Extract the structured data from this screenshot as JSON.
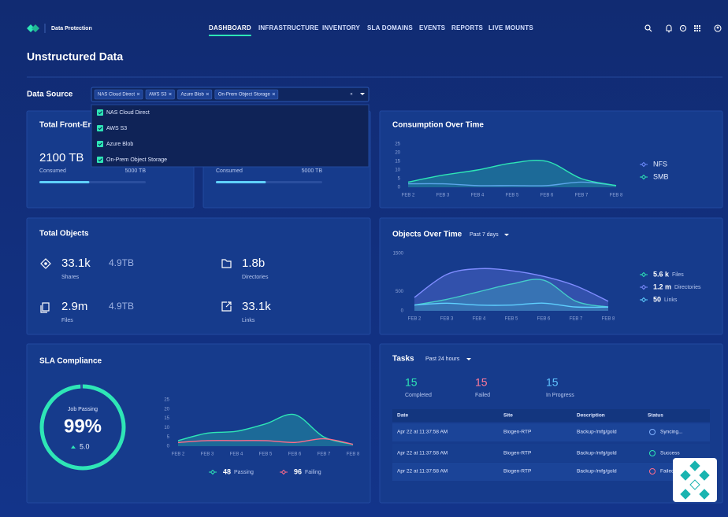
{
  "header": {
    "brand": "Data Protection",
    "nav": [
      "DASHBOARD",
      "INFRASTRUCTURE",
      "INVENTORY",
      "SLA DOMAINS",
      "EVENTS",
      "REPORTS",
      "LIVE MOUNTS"
    ]
  },
  "page_title": "Unstructured Data",
  "data_source": {
    "label": "Data Source",
    "selected": [
      "NAS Cloud Direct",
      "AWS S3",
      "Azure Blob",
      "On-Prem Object Storage"
    ],
    "options": [
      "NAS Cloud Direct",
      "AWS S3",
      "Azure Blob",
      "On-Prem Object Storage"
    ]
  },
  "front_end_storage": {
    "title": "Total Front-End",
    "value": "2100 TB",
    "consumed_label": "Consumed",
    "capacity": "5000 TB",
    "progress_percent": 47
  },
  "second_storage": {
    "consumed_label": "Consumed",
    "capacity": "5000 TB",
    "progress_percent": 47
  },
  "total_objects": {
    "title": "Total Objects",
    "items": [
      {
        "value": "33.1k",
        "size": "4.9TB",
        "label": "Shares"
      },
      {
        "value": "1.8b",
        "label": "Directories"
      },
      {
        "value": "2.9m",
        "size": "4.9TB",
        "label": "Files"
      },
      {
        "value": "33.1k",
        "label": "Links"
      }
    ]
  },
  "sla_gauge": {
    "label": "Job Passing",
    "passing": {
      "value": 99,
      "label": "99%"
    },
    "change": {
      "value": 5,
      "label": "5.0"
    }
  },
  "tasks": {
    "title": "Tasks",
    "range_label": "Past 24 hours",
    "counts": [
      {
        "value": 15,
        "label": "Completed",
        "color": "#2ee6b6"
      },
      {
        "value": 15,
        "label": "Failed",
        "color": "#ff7a9a"
      },
      {
        "value": 15,
        "label": "In Progress",
        "color": "#5fc3ff"
      }
    ],
    "table": {
      "columns": [
        "Date",
        "Site",
        "Description",
        "Status"
      ],
      "rows": [
        [
          "Apr 22 at 11:37:58 AM",
          "Biogen-RTP",
          "Backup-/mfg/gold",
          "Syncing..."
        ],
        [
          "Apr 22 at 11:37:58 AM",
          "Biogen-RTP",
          "Backup-/mfg/gold",
          "Success"
        ],
        [
          "Apr 22 at 11:37:58 AM",
          "Biogen-RTP",
          "Backup-/mfg/gold",
          "Failed"
        ]
      ]
    }
  },
  "chart_data": [
    {
      "type": "line",
      "title": "Consumption Over Time",
      "categories": [
        "FEB 2",
        "FEB 3",
        "FEB 4",
        "FEB 5",
        "FEB 6",
        "FEB 7",
        "FEB 8"
      ],
      "series": [
        {
          "name": "NFS",
          "color": "#6f8dff",
          "values": [
            2,
            2,
            1,
            1,
            1,
            3,
            1
          ]
        },
        {
          "name": "SMB",
          "color": "#2ee6b6",
          "area": true,
          "values": [
            3,
            7,
            10,
            14,
            15,
            5,
            1
          ]
        }
      ],
      "ylim": [
        0,
        25
      ],
      "yticks": [
        0,
        5,
        10,
        15,
        20,
        25
      ]
    },
    {
      "type": "line",
      "title": "Objects Over Time",
      "range_label": "Past 7 days",
      "categories": [
        "FEB 2",
        "FEB 3",
        "FEB 4",
        "FEB 5",
        "FEB 6",
        "FEB 7",
        "FEB 8"
      ],
      "series": [
        {
          "name": "Files",
          "total": "5.6 k",
          "color": "#2ee6b6",
          "area": true,
          "values": [
            150,
            300,
            500,
            700,
            800,
            250,
            100
          ]
        },
        {
          "name": "Directories",
          "total": "1.2 m",
          "color": "#7f8cff",
          "area": true,
          "values": [
            350,
            950,
            1100,
            1050,
            900,
            650,
            250
          ]
        },
        {
          "name": "Links",
          "total": "50",
          "color": "#5fd0ff",
          "values": [
            150,
            200,
            150,
            150,
            200,
            100,
            100
          ]
        }
      ],
      "ylim": [
        0,
        1500
      ],
      "yticks": [
        0,
        500,
        1500
      ]
    },
    {
      "type": "line",
      "title": "SLA Compliance",
      "categories": [
        "FEB 2",
        "FEB 3",
        "FEB 4",
        "FEB 5",
        "FEB 6",
        "FEB 7",
        "FEB 8"
      ],
      "series": [
        {
          "name": "Passing",
          "total": 48,
          "color": "#2ee6b6",
          "area": true,
          "values": [
            3,
            7,
            8,
            12,
            17,
            5,
            1
          ]
        },
        {
          "name": "Failing",
          "total": 96,
          "color": "#ff6b8a",
          "values": [
            2,
            3,
            3,
            3,
            2,
            4,
            1
          ]
        }
      ],
      "ylim": [
        0,
        25
      ],
      "yticks": [
        0,
        5,
        10,
        15,
        20,
        25
      ]
    }
  ]
}
